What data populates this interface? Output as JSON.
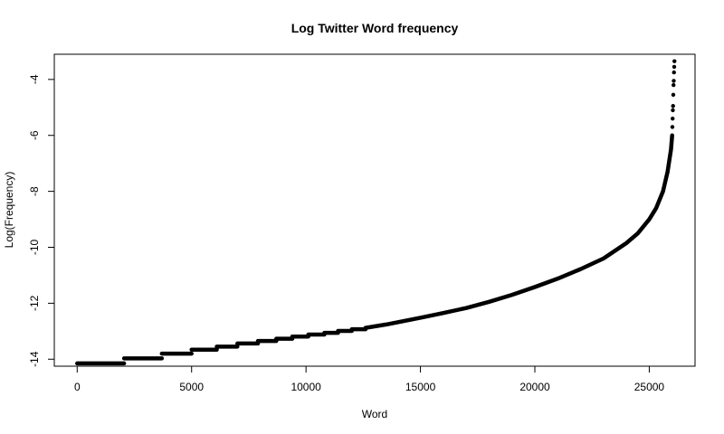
{
  "chart_data": {
    "type": "scatter",
    "title": "Log Twitter Word frequency",
    "xlabel": "Word",
    "ylabel": "Log(Frequency)",
    "xlim": [
      -1000,
      27000
    ],
    "ylim": [
      -14.25,
      -3.1
    ],
    "x_ticks": [
      0,
      5000,
      10000,
      15000,
      20000,
      25000
    ],
    "y_ticks": [
      -14,
      -12,
      -10,
      -8,
      -6,
      -4
    ],
    "point_color": "#000000",
    "n_points": 26100,
    "steps": [
      {
        "x_start": 0,
        "x_end": 2050,
        "y": -14.15
      },
      {
        "x_start": 2050,
        "x_end": 3700,
        "y": -13.97
      },
      {
        "x_start": 3700,
        "x_end": 5000,
        "y": -13.8
      },
      {
        "x_start": 5000,
        "x_end": 6100,
        "y": -13.66
      },
      {
        "x_start": 6100,
        "x_end": 7000,
        "y": -13.55
      },
      {
        "x_start": 7000,
        "x_end": 7900,
        "y": -13.44
      },
      {
        "x_start": 7900,
        "x_end": 8700,
        "y": -13.35
      },
      {
        "x_start": 8700,
        "x_end": 9400,
        "y": -13.27
      },
      {
        "x_start": 9400,
        "x_end": 10100,
        "y": -13.19
      },
      {
        "x_start": 10100,
        "x_end": 10800,
        "y": -13.12
      },
      {
        "x_start": 10800,
        "x_end": 11400,
        "y": -13.06
      },
      {
        "x_start": 11400,
        "x_end": 12000,
        "y": -12.99
      },
      {
        "x_start": 12000,
        "x_end": 12600,
        "y": -12.93
      }
    ],
    "curve": [
      {
        "x": 12600,
        "y": -12.88
      },
      {
        "x": 13500,
        "y": -12.76
      },
      {
        "x": 15000,
        "y": -12.52
      },
      {
        "x": 16000,
        "y": -12.35
      },
      {
        "x": 17000,
        "y": -12.17
      },
      {
        "x": 18000,
        "y": -11.95
      },
      {
        "x": 19000,
        "y": -11.7
      },
      {
        "x": 20000,
        "y": -11.42
      },
      {
        "x": 21000,
        "y": -11.12
      },
      {
        "x": 22000,
        "y": -10.78
      },
      {
        "x": 23000,
        "y": -10.4
      },
      {
        "x": 24000,
        "y": -9.85
      },
      {
        "x": 24500,
        "y": -9.5
      },
      {
        "x": 25000,
        "y": -9.0
      },
      {
        "x": 25300,
        "y": -8.6
      },
      {
        "x": 25600,
        "y": -8.0
      },
      {
        "x": 25800,
        "y": -7.3
      },
      {
        "x": 25950,
        "y": -6.5
      },
      {
        "x": 26000,
        "y": -6.0
      }
    ],
    "top_points": [
      {
        "x": 26010,
        "y": -5.7
      },
      {
        "x": 26020,
        "y": -5.4
      },
      {
        "x": 26030,
        "y": -5.1
      },
      {
        "x": 26040,
        "y": -4.95
      },
      {
        "x": 26050,
        "y": -4.55
      },
      {
        "x": 26060,
        "y": -4.2
      },
      {
        "x": 26070,
        "y": -4.05
      },
      {
        "x": 26080,
        "y": -3.75
      },
      {
        "x": 26090,
        "y": -3.55
      },
      {
        "x": 26100,
        "y": -3.35
      }
    ]
  }
}
